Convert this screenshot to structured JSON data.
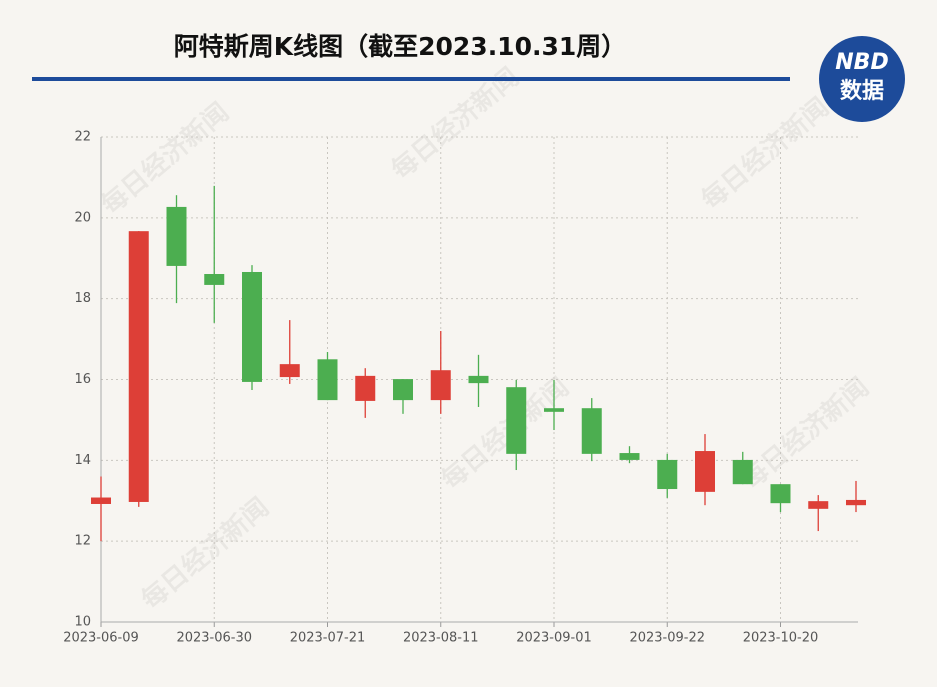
{
  "watermark": "每日经济新闻",
  "logo": {
    "top": "NBD",
    "bottom": "数据"
  },
  "chart_data": {
    "type": "candlestick",
    "title": "阿特斯周K线图（截至2023.10.31周）",
    "categories": [
      "2023-06-09",
      null,
      null,
      "2023-06-30",
      null,
      null,
      "2023-07-21",
      null,
      null,
      "2023-08-11",
      null,
      null,
      "2023-09-01",
      null,
      null,
      "2023-09-22",
      null,
      null,
      "2023-10-20",
      null,
      null
    ],
    "open": [
      12.92,
      12.97,
      20.27,
      18.61,
      18.66,
      16.06,
      16.5,
      15.47,
      16.01,
      15.49,
      16.09,
      15.81,
      15.29,
      15.29,
      14.18,
      14.01,
      13.22,
      14.01,
      13.41,
      12.8,
      12.89
    ],
    "close": [
      13.08,
      19.67,
      18.81,
      18.34,
      15.94,
      16.38,
      15.49,
      16.09,
      15.49,
      16.23,
      15.91,
      14.16,
      15.2,
      14.16,
      14.01,
      13.29,
      14.23,
      13.41,
      12.94,
      12.99,
      13.02
    ],
    "high": [
      13.6,
      19.67,
      20.56,
      20.79,
      18.83,
      17.47,
      16.68,
      16.28,
      16.01,
      17.2,
      16.61,
      15.99,
      15.99,
      15.54,
      14.35,
      14.16,
      14.65,
      14.21,
      13.41,
      13.14,
      13.49
    ],
    "low": [
      12.0,
      12.85,
      17.89,
      17.4,
      15.74,
      15.89,
      15.49,
      15.05,
      15.15,
      15.15,
      15.32,
      13.76,
      14.75,
      13.98,
      13.93,
      13.07,
      12.89,
      13.41,
      12.72,
      12.25,
      12.72
    ],
    "up_color": "#dd3f37",
    "down_color": "#4cae50",
    "ylim": [
      10,
      22
    ],
    "yticks": [
      10,
      12,
      14,
      16,
      18,
      20,
      22
    ],
    "grid": true
  }
}
